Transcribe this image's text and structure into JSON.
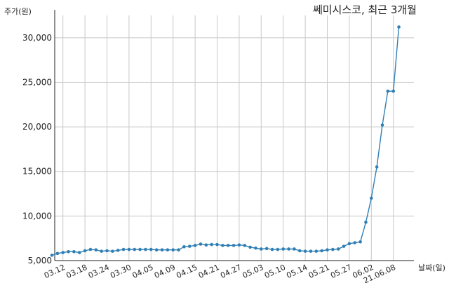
{
  "chart_data": {
    "type": "line",
    "title": "쎄미시스코, 최근 3개월",
    "ylabel": "주가(원)",
    "xlabel": "날짜(일)",
    "ylim": [
      5000,
      32500
    ],
    "yticks": [
      5000,
      10000,
      15000,
      20000,
      25000,
      30000
    ],
    "ytick_labels": [
      "5,000",
      "10,000",
      "15,000",
      "20,000",
      "25,000",
      "30,000"
    ],
    "xticks": [
      {
        "index": 2,
        "label": "03.12"
      },
      {
        "index": 6,
        "label": "03.18"
      },
      {
        "index": 10,
        "label": "03.24"
      },
      {
        "index": 14,
        "label": "03.30"
      },
      {
        "index": 18,
        "label": "04.05"
      },
      {
        "index": 22,
        "label": "04.09"
      },
      {
        "index": 26,
        "label": "04.15"
      },
      {
        "index": 30,
        "label": "04.21"
      },
      {
        "index": 34,
        "label": "04.27"
      },
      {
        "index": 38,
        "label": "05.03"
      },
      {
        "index": 42,
        "label": "05.10"
      },
      {
        "index": 46,
        "label": "05.14"
      },
      {
        "index": 50,
        "label": "05.21"
      },
      {
        "index": 54,
        "label": "05.27"
      },
      {
        "index": 58,
        "label": "06.02"
      },
      {
        "index": 62,
        "label": "21.06.08"
      }
    ],
    "grid": true,
    "color": "#2f7fb5",
    "values": [
      5600,
      5800,
      5900,
      6000,
      6000,
      5900,
      6100,
      6250,
      6200,
      6050,
      6100,
      6050,
      6150,
      6250,
      6250,
      6250,
      6250,
      6250,
      6250,
      6200,
      6200,
      6200,
      6200,
      6200,
      6550,
      6600,
      6700,
      6850,
      6750,
      6800,
      6800,
      6700,
      6700,
      6700,
      6750,
      6700,
      6500,
      6400,
      6300,
      6350,
      6250,
      6250,
      6300,
      6300,
      6300,
      6100,
      6050,
      6050,
      6050,
      6100,
      6200,
      6250,
      6300,
      6600,
      6900,
      7000,
      7100,
      9300,
      12000,
      15500,
      20200,
      24000,
      24000,
      31200
    ]
  }
}
